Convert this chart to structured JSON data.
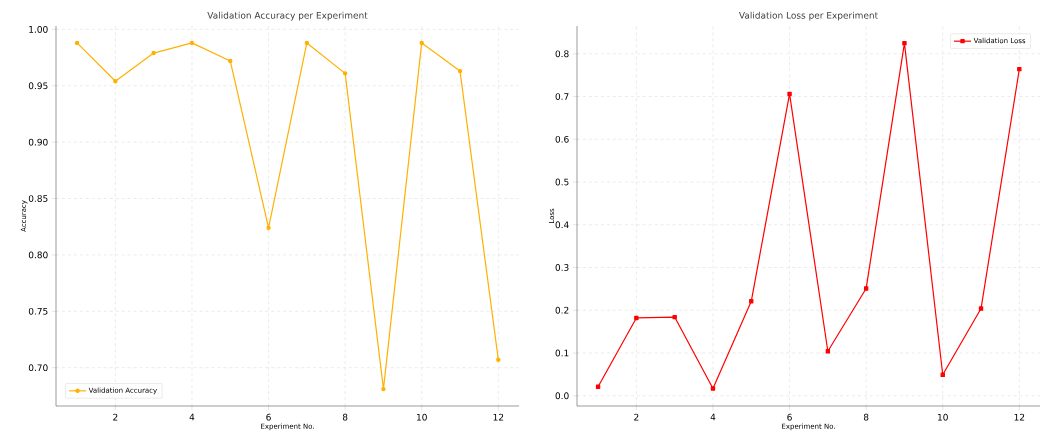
{
  "chart_data": [
    {
      "type": "line",
      "title": "Validation Accuracy per Experiment",
      "xlabel": "Experiment No.",
      "ylabel": "Accuracy",
      "x": [
        1,
        2,
        3,
        4,
        5,
        6,
        7,
        8,
        9,
        10,
        11,
        12
      ],
      "series": [
        {
          "name": "Validation Accuracy",
          "color": "#ffb000",
          "values": [
            0.988,
            0.954,
            0.979,
            0.988,
            0.972,
            0.824,
            0.988,
            0.961,
            0.681,
            0.988,
            0.963,
            0.707
          ]
        }
      ],
      "xlim": [
        0.45,
        12.54
      ],
      "ylim": [
        0.666,
        1.003
      ],
      "xticks": [
        2,
        4,
        6,
        8,
        10,
        12
      ],
      "yticks": [
        {
          "value": 0.7,
          "label": "0.70"
        },
        {
          "value": 0.75,
          "label": "0.75"
        },
        {
          "value": 0.8,
          "label": "0.80"
        },
        {
          "value": 0.85,
          "label": "0.85"
        },
        {
          "value": 0.9,
          "label": "0.90"
        },
        {
          "value": 0.95,
          "label": "0.95"
        },
        {
          "value": 1.0,
          "label": "1.00"
        }
      ],
      "grid": true,
      "legend": "bottom left",
      "marker": "circle",
      "line_style": "solid"
    },
    {
      "type": "line",
      "title": "Validation Loss per Experiment",
      "xlabel": "Experiment No.",
      "ylabel": "Loss",
      "x": [
        1,
        2,
        3,
        4,
        5,
        6,
        7,
        8,
        9,
        10,
        11,
        12
      ],
      "series": [
        {
          "name": "Validation Loss",
          "color": "#ff0000",
          "values": [
            0.021,
            0.182,
            0.184,
            0.017,
            0.221,
            0.706,
            0.104,
            0.251,
            0.825,
            0.049,
            0.204,
            0.764
          ]
        }
      ],
      "xlim": [
        0.45,
        12.54
      ],
      "ylim": [
        -0.024,
        0.865
      ],
      "xticks": [
        2,
        4,
        6,
        8,
        10,
        12
      ],
      "yticks": [
        {
          "value": 0,
          "label": "0.0"
        },
        {
          "value": 0.1,
          "label": "0.1"
        },
        {
          "value": 0.2,
          "label": "0.2"
        },
        {
          "value": 0.3,
          "label": "0.3"
        },
        {
          "value": 0.4,
          "label": "0.4"
        },
        {
          "value": 0.5,
          "label": "0.5"
        },
        {
          "value": 0.6,
          "label": "0.6"
        },
        {
          "value": 0.7,
          "label": "0.7"
        },
        {
          "value": 0.8,
          "label": "0.8"
        }
      ],
      "grid": true,
      "legend": "top right",
      "marker": "square",
      "line_style": "solid"
    }
  ]
}
